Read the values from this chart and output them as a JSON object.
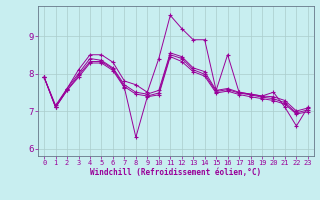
{
  "xlabel": "Windchill (Refroidissement éolien,°C)",
  "bg_color": "#c8eef0",
  "line_color": "#990099",
  "grid_color": "#aacccc",
  "xlim": [
    -0.5,
    23.5
  ],
  "ylim": [
    5.8,
    9.8
  ],
  "xticks": [
    0,
    1,
    2,
    3,
    4,
    5,
    6,
    7,
    8,
    9,
    10,
    11,
    12,
    13,
    14,
    15,
    16,
    17,
    18,
    19,
    20,
    21,
    22,
    23
  ],
  "yticks": [
    6,
    7,
    8,
    9
  ],
  "lines": [
    {
      "x": [
        0,
        1,
        2,
        3,
        4,
        5,
        6,
        7,
        8,
        9,
        10,
        11,
        12,
        13,
        14,
        15,
        16,
        17,
        18,
        19,
        20,
        21,
        22,
        23
      ],
      "y": [
        7.9,
        7.1,
        7.6,
        8.1,
        8.5,
        8.5,
        8.3,
        7.8,
        7.7,
        7.5,
        8.4,
        9.55,
        9.2,
        8.9,
        8.9,
        7.55,
        8.5,
        7.5,
        7.45,
        7.4,
        7.5,
        7.1,
        6.6,
        7.1
      ]
    },
    {
      "x": [
        0,
        1,
        2,
        3,
        4,
        5,
        6,
        7,
        8,
        9,
        10,
        11,
        12,
        13,
        14,
        15,
        16,
        17,
        18,
        19,
        20,
        21,
        22,
        23
      ],
      "y": [
        7.9,
        7.15,
        7.6,
        8.0,
        8.4,
        8.35,
        8.15,
        7.7,
        7.5,
        7.45,
        7.55,
        8.55,
        8.45,
        8.15,
        8.05,
        7.55,
        7.6,
        7.5,
        7.45,
        7.4,
        7.38,
        7.28,
        7.0,
        7.08
      ]
    },
    {
      "x": [
        0,
        1,
        2,
        3,
        4,
        5,
        6,
        7,
        8,
        9,
        10,
        11,
        12,
        13,
        14,
        15,
        16,
        17,
        18,
        19,
        20,
        21,
        22,
        23
      ],
      "y": [
        7.9,
        7.1,
        7.55,
        7.95,
        8.32,
        8.32,
        8.12,
        7.65,
        7.45,
        7.4,
        7.48,
        8.5,
        8.4,
        8.1,
        7.98,
        7.52,
        7.57,
        7.48,
        7.43,
        7.37,
        7.33,
        7.22,
        6.95,
        7.03
      ]
    },
    {
      "x": [
        0,
        1,
        2,
        3,
        4,
        5,
        6,
        7,
        8,
        9,
        10,
        11,
        12,
        13,
        14,
        15,
        16,
        17,
        18,
        19,
        20,
        21,
        22,
        23
      ],
      "y": [
        7.9,
        7.1,
        7.55,
        7.9,
        8.28,
        8.28,
        8.08,
        7.62,
        6.3,
        7.38,
        7.43,
        8.45,
        8.32,
        8.05,
        7.93,
        7.48,
        7.53,
        7.44,
        7.38,
        7.33,
        7.28,
        7.18,
        6.92,
        6.98
      ]
    }
  ]
}
